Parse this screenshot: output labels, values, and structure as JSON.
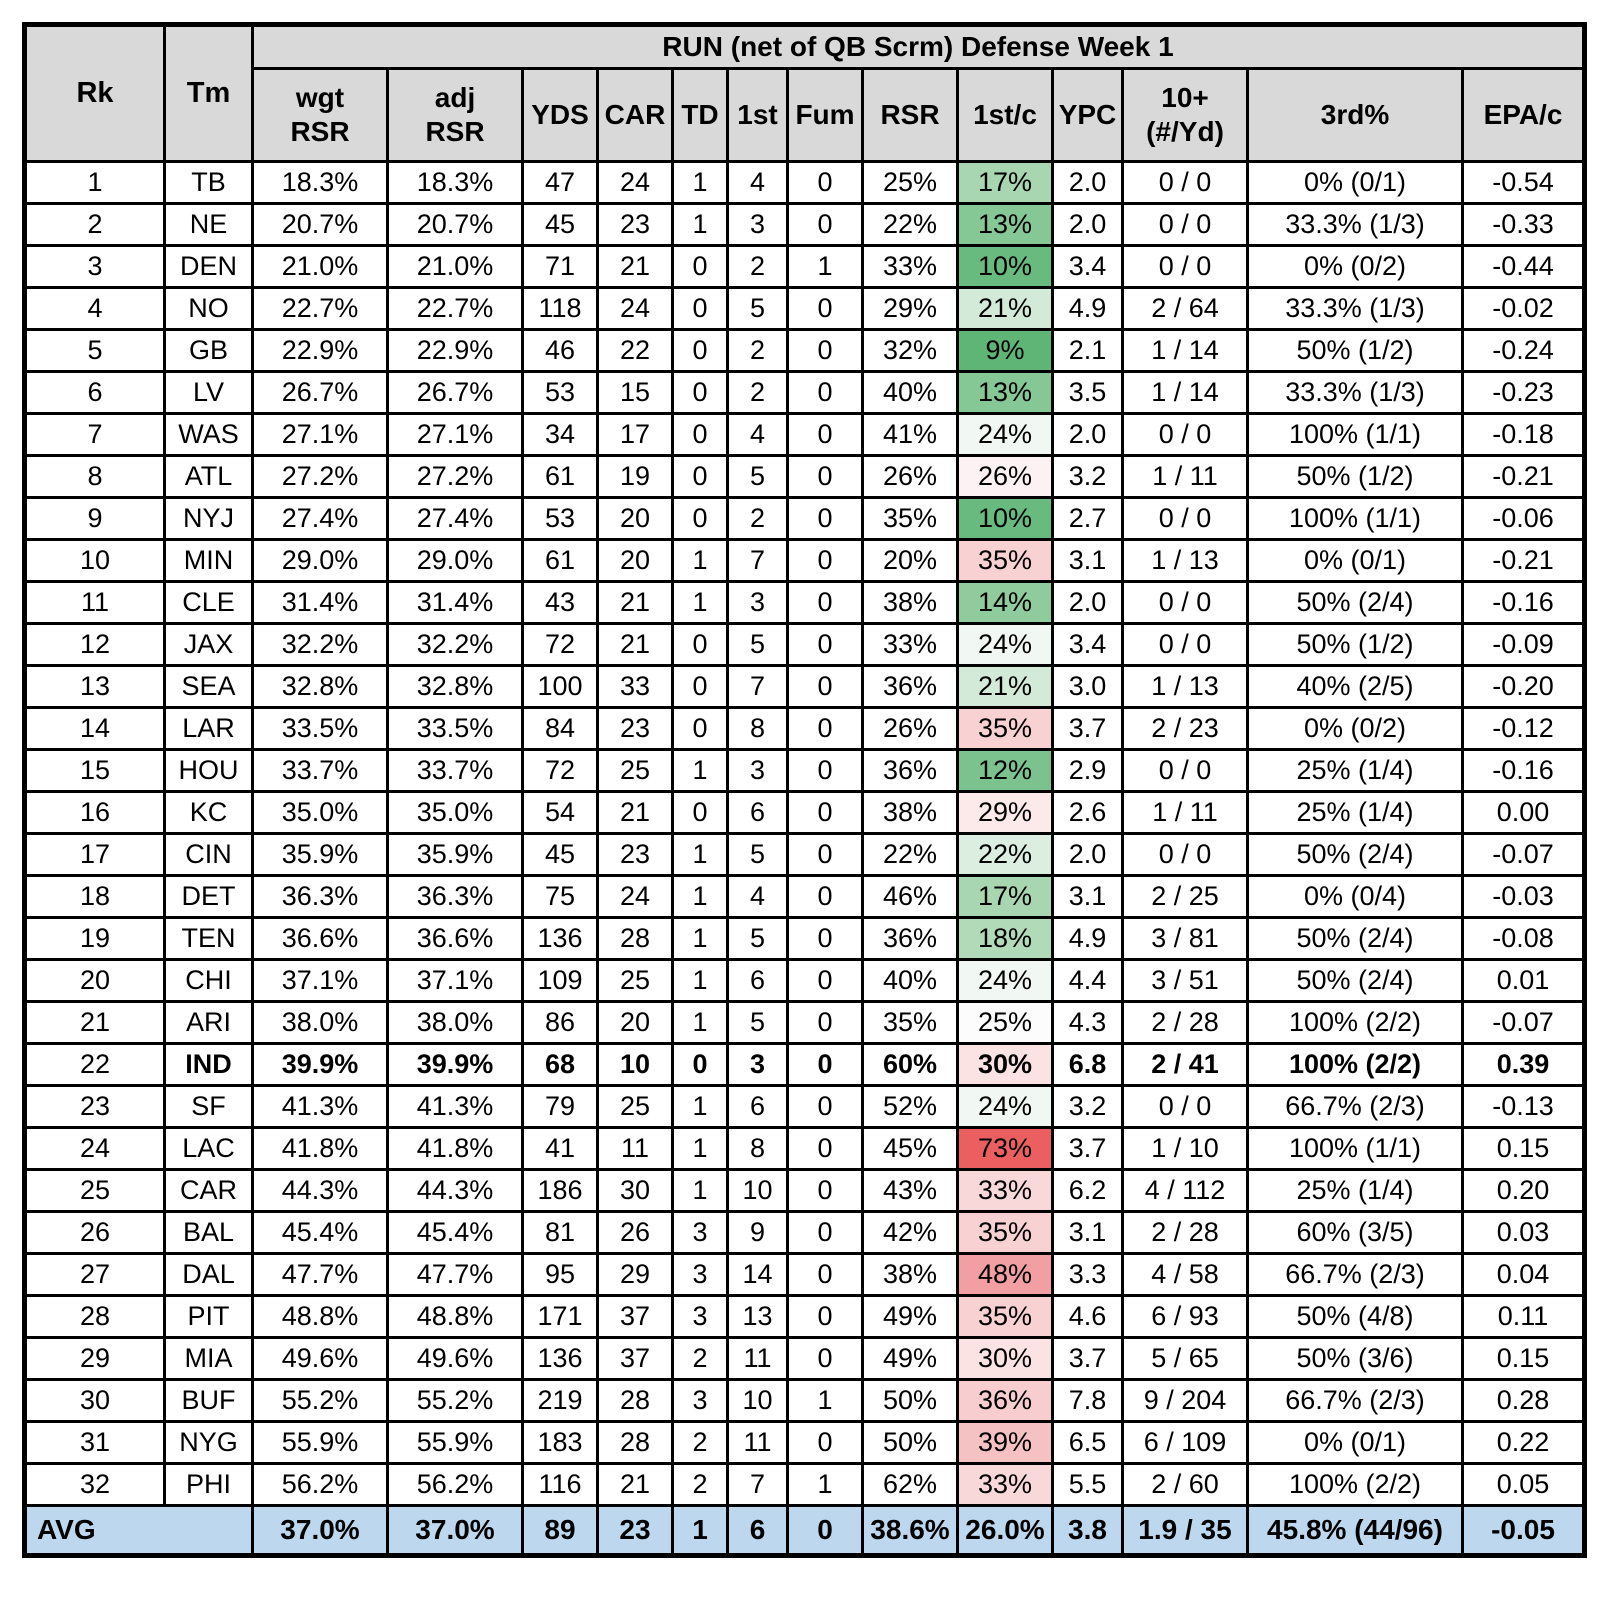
{
  "chart_data": {
    "type": "table",
    "title": "RUN (net of QB Scrm) Defense Week 1",
    "fixed_columns": [
      {
        "label": "Rk"
      },
      {
        "label": "Tm"
      }
    ],
    "stat_columns": [
      {
        "key": "wgt",
        "label": "wgt",
        "label2": "RSR"
      },
      {
        "key": "adj",
        "label": "adj",
        "label2": "RSR"
      },
      {
        "key": "yds",
        "label": "YDS",
        "label2": ""
      },
      {
        "key": "car",
        "label": "CAR",
        "label2": ""
      },
      {
        "key": "td",
        "label": "TD",
        "label2": ""
      },
      {
        "key": "first",
        "label": "1st",
        "label2": ""
      },
      {
        "key": "fum",
        "label": "Fum",
        "label2": ""
      },
      {
        "key": "rsr",
        "label": "RSR",
        "label2": ""
      },
      {
        "key": "firstc",
        "label": "1st/c",
        "label2": ""
      },
      {
        "key": "ypc",
        "label": "YPC",
        "label2": ""
      },
      {
        "key": "tenplus",
        "label": "10+",
        "label2": "(#/Yd)"
      },
      {
        "key": "third",
        "label": "3rd%",
        "label2": ""
      },
      {
        "key": "epa",
        "label": "EPA/c",
        "label2": ""
      }
    ],
    "rows": [
      {
        "rk": "1",
        "tm": "TB",
        "wgt": "18.3%",
        "adj": "18.3%",
        "yds": "47",
        "car": "24",
        "td": "1",
        "first": "4",
        "fum": "0",
        "rsr": "25%",
        "firstc": "17%",
        "firstc_bg": "#a8d6b0",
        "ypc": "2.0",
        "tenplus": "0 / 0",
        "third": "0% (0/1)",
        "epa": "-0.54",
        "bold": false
      },
      {
        "rk": "2",
        "tm": "NE",
        "wgt": "20.7%",
        "adj": "20.7%",
        "yds": "45",
        "car": "23",
        "td": "1",
        "first": "3",
        "fum": "0",
        "rsr": "22%",
        "firstc": "13%",
        "firstc_bg": "#86c796",
        "ypc": "2.0",
        "tenplus": "0 / 0",
        "third": "33.3% (1/3)",
        "epa": "-0.33",
        "bold": false
      },
      {
        "rk": "3",
        "tm": "DEN",
        "wgt": "21.0%",
        "adj": "21.0%",
        "yds": "71",
        "car": "21",
        "td": "0",
        "first": "2",
        "fum": "1",
        "rsr": "33%",
        "firstc": "10%",
        "firstc_bg": "#68ba7f",
        "ypc": "3.4",
        "tenplus": "0 / 0",
        "third": "0% (0/2)",
        "epa": "-0.44",
        "bold": false
      },
      {
        "rk": "4",
        "tm": "NO",
        "wgt": "22.7%",
        "adj": "22.7%",
        "yds": "118",
        "car": "24",
        "td": "0",
        "first": "5",
        "fum": "0",
        "rsr": "29%",
        "firstc": "21%",
        "firstc_bg": "#d3ead8",
        "ypc": "4.9",
        "tenplus": "2 / 64",
        "third": "33.3% (1/3)",
        "epa": "-0.02",
        "bold": false
      },
      {
        "rk": "5",
        "tm": "GB",
        "wgt": "22.9%",
        "adj": "22.9%",
        "yds": "46",
        "car": "22",
        "td": "0",
        "first": "2",
        "fum": "0",
        "rsr": "32%",
        "firstc": "9%",
        "firstc_bg": "#5eb576",
        "ypc": "2.1",
        "tenplus": "1 / 14",
        "third": "50% (1/2)",
        "epa": "-0.24",
        "bold": false
      },
      {
        "rk": "6",
        "tm": "LV",
        "wgt": "26.7%",
        "adj": "26.7%",
        "yds": "53",
        "car": "15",
        "td": "0",
        "first": "2",
        "fum": "0",
        "rsr": "40%",
        "firstc": "13%",
        "firstc_bg": "#86c796",
        "ypc": "3.5",
        "tenplus": "1 / 14",
        "third": "33.3% (1/3)",
        "epa": "-0.23",
        "bold": false
      },
      {
        "rk": "7",
        "tm": "WAS",
        "wgt": "27.1%",
        "adj": "27.1%",
        "yds": "34",
        "car": "17",
        "td": "0",
        "first": "4",
        "fum": "0",
        "rsr": "41%",
        "firstc": "24%",
        "firstc_bg": "#f1f7f3",
        "ypc": "2.0",
        "tenplus": "0 / 0",
        "third": "100% (1/1)",
        "epa": "-0.18",
        "bold": false
      },
      {
        "rk": "8",
        "tm": "ATL",
        "wgt": "27.2%",
        "adj": "27.2%",
        "yds": "61",
        "car": "19",
        "td": "0",
        "first": "5",
        "fum": "0",
        "rsr": "26%",
        "firstc": "26%",
        "firstc_bg": "#fdf2f3",
        "ypc": "3.2",
        "tenplus": "1 / 11",
        "third": "50% (1/2)",
        "epa": "-0.21",
        "bold": false
      },
      {
        "rk": "9",
        "tm": "NYJ",
        "wgt": "27.4%",
        "adj": "27.4%",
        "yds": "53",
        "car": "20",
        "td": "0",
        "first": "2",
        "fum": "0",
        "rsr": "35%",
        "firstc": "10%",
        "firstc_bg": "#68ba7f",
        "ypc": "2.7",
        "tenplus": "0 / 0",
        "third": "100% (1/1)",
        "epa": "-0.06",
        "bold": false
      },
      {
        "rk": "10",
        "tm": "MIN",
        "wgt": "29.0%",
        "adj": "29.0%",
        "yds": "61",
        "car": "20",
        "td": "1",
        "first": "7",
        "fum": "0",
        "rsr": "20%",
        "firstc": "35%",
        "firstc_bg": "#f8d1d3",
        "ypc": "3.1",
        "tenplus": "1 / 13",
        "third": "0% (0/1)",
        "epa": "-0.21",
        "bold": false
      },
      {
        "rk": "11",
        "tm": "CLE",
        "wgt": "31.4%",
        "adj": "31.4%",
        "yds": "43",
        "car": "21",
        "td": "1",
        "first": "3",
        "fum": "0",
        "rsr": "38%",
        "firstc": "14%",
        "firstc_bg": "#90cb9e",
        "ypc": "2.0",
        "tenplus": "0 / 0",
        "third": "50% (2/4)",
        "epa": "-0.16",
        "bold": false
      },
      {
        "rk": "12",
        "tm": "JAX",
        "wgt": "32.2%",
        "adj": "32.2%",
        "yds": "72",
        "car": "21",
        "td": "0",
        "first": "5",
        "fum": "0",
        "rsr": "33%",
        "firstc": "24%",
        "firstc_bg": "#f1f7f3",
        "ypc": "3.4",
        "tenplus": "0 / 0",
        "third": "50% (1/2)",
        "epa": "-0.09",
        "bold": false
      },
      {
        "rk": "13",
        "tm": "SEA",
        "wgt": "32.8%",
        "adj": "32.8%",
        "yds": "100",
        "car": "33",
        "td": "0",
        "first": "7",
        "fum": "0",
        "rsr": "36%",
        "firstc": "21%",
        "firstc_bg": "#d3ead8",
        "ypc": "3.0",
        "tenplus": "1 / 13",
        "third": "40% (2/5)",
        "epa": "-0.20",
        "bold": false
      },
      {
        "rk": "14",
        "tm": "LAR",
        "wgt": "33.5%",
        "adj": "33.5%",
        "yds": "84",
        "car": "23",
        "td": "0",
        "first": "8",
        "fum": "0",
        "rsr": "26%",
        "firstc": "35%",
        "firstc_bg": "#f8d1d3",
        "ypc": "3.7",
        "tenplus": "2 / 23",
        "third": "0% (0/2)",
        "epa": "-0.12",
        "bold": false
      },
      {
        "rk": "15",
        "tm": "HOU",
        "wgt": "33.7%",
        "adj": "33.7%",
        "yds": "72",
        "car": "25",
        "td": "1",
        "first": "3",
        "fum": "0",
        "rsr": "36%",
        "firstc": "12%",
        "firstc_bg": "#7cc28e",
        "ypc": "2.9",
        "tenplus": "0 / 0",
        "third": "25% (1/4)",
        "epa": "-0.16",
        "bold": false
      },
      {
        "rk": "16",
        "tm": "KC",
        "wgt": "35.0%",
        "adj": "35.0%",
        "yds": "54",
        "car": "21",
        "td": "0",
        "first": "6",
        "fum": "0",
        "rsr": "38%",
        "firstc": "29%",
        "firstc_bg": "#fce9ea",
        "ypc": "2.6",
        "tenplus": "1 / 11",
        "third": "25% (1/4)",
        "epa": "0.00",
        "bold": false
      },
      {
        "rk": "17",
        "tm": "CIN",
        "wgt": "35.9%",
        "adj": "35.9%",
        "yds": "45",
        "car": "23",
        "td": "1",
        "first": "5",
        "fum": "0",
        "rsr": "22%",
        "firstc": "22%",
        "firstc_bg": "#dceee0",
        "ypc": "2.0",
        "tenplus": "0 / 0",
        "third": "50% (2/4)",
        "epa": "-0.07",
        "bold": false
      },
      {
        "rk": "18",
        "tm": "DET",
        "wgt": "36.3%",
        "adj": "36.3%",
        "yds": "75",
        "car": "24",
        "td": "1",
        "first": "4",
        "fum": "0",
        "rsr": "46%",
        "firstc": "17%",
        "firstc_bg": "#a8d6b0",
        "ypc": "3.1",
        "tenplus": "2 / 25",
        "third": "0% (0/4)",
        "epa": "-0.03",
        "bold": false
      },
      {
        "rk": "19",
        "tm": "TEN",
        "wgt": "36.6%",
        "adj": "36.6%",
        "yds": "136",
        "car": "28",
        "td": "1",
        "first": "5",
        "fum": "0",
        "rsr": "36%",
        "firstc": "18%",
        "firstc_bg": "#b0dab8",
        "ypc": "4.9",
        "tenplus": "3 / 81",
        "third": "50% (2/4)",
        "epa": "-0.08",
        "bold": false
      },
      {
        "rk": "20",
        "tm": "CHI",
        "wgt": "37.1%",
        "adj": "37.1%",
        "yds": "109",
        "car": "25",
        "td": "1",
        "first": "6",
        "fum": "0",
        "rsr": "40%",
        "firstc": "24%",
        "firstc_bg": "#f1f7f3",
        "ypc": "4.4",
        "tenplus": "3 / 51",
        "third": "50% (2/4)",
        "epa": "0.01",
        "bold": false
      },
      {
        "rk": "21",
        "tm": "ARI",
        "wgt": "38.0%",
        "adj": "38.0%",
        "yds": "86",
        "car": "20",
        "td": "1",
        "first": "5",
        "fum": "0",
        "rsr": "35%",
        "firstc": "25%",
        "firstc_bg": "#fbfcfb",
        "ypc": "4.3",
        "tenplus": "2 / 28",
        "third": "100% (2/2)",
        "epa": "-0.07",
        "bold": false
      },
      {
        "rk": "22",
        "tm": "IND",
        "wgt": "39.9%",
        "adj": "39.9%",
        "yds": "68",
        "car": "10",
        "td": "0",
        "first": "3",
        "fum": "0",
        "rsr": "60%",
        "firstc": "30%",
        "firstc_bg": "#fbe3e4",
        "ypc": "6.8",
        "tenplus": "2 / 41",
        "third": "100% (2/2)",
        "epa": "0.39",
        "bold": true
      },
      {
        "rk": "23",
        "tm": "SF",
        "wgt": "41.3%",
        "adj": "41.3%",
        "yds": "79",
        "car": "25",
        "td": "1",
        "first": "6",
        "fum": "0",
        "rsr": "52%",
        "firstc": "24%",
        "firstc_bg": "#f1f7f3",
        "ypc": "3.2",
        "tenplus": "0 / 0",
        "third": "66.7% (2/3)",
        "epa": "-0.13",
        "bold": false
      },
      {
        "rk": "24",
        "tm": "LAC",
        "wgt": "41.8%",
        "adj": "41.8%",
        "yds": "41",
        "car": "11",
        "td": "1",
        "first": "8",
        "fum": "0",
        "rsr": "45%",
        "firstc": "73%",
        "firstc_bg": "#ec5f61",
        "ypc": "3.7",
        "tenplus": "1 / 10",
        "third": "100% (1/1)",
        "epa": "0.15",
        "bold": false
      },
      {
        "rk": "25",
        "tm": "CAR",
        "wgt": "44.3%",
        "adj": "44.3%",
        "yds": "186",
        "car": "30",
        "td": "1",
        "first": "10",
        "fum": "0",
        "rsr": "43%",
        "firstc": "33%",
        "firstc_bg": "#f9d8da",
        "ypc": "6.2",
        "tenplus": "4 / 112",
        "third": "25% (1/4)",
        "epa": "0.20",
        "bold": false
      },
      {
        "rk": "26",
        "tm": "BAL",
        "wgt": "45.4%",
        "adj": "45.4%",
        "yds": "81",
        "car": "26",
        "td": "3",
        "first": "9",
        "fum": "0",
        "rsr": "42%",
        "firstc": "35%",
        "firstc_bg": "#f8d1d3",
        "ypc": "3.1",
        "tenplus": "2 / 28",
        "third": "60% (3/5)",
        "epa": "0.03",
        "bold": false
      },
      {
        "rk": "27",
        "tm": "DAL",
        "wgt": "47.7%",
        "adj": "47.7%",
        "yds": "95",
        "car": "29",
        "td": "3",
        "first": "14",
        "fum": "0",
        "rsr": "38%",
        "firstc": "48%",
        "firstc_bg": "#f19fa2",
        "ypc": "3.3",
        "tenplus": "4 / 58",
        "third": "66.7% (2/3)",
        "epa": "0.04",
        "bold": false
      },
      {
        "rk": "28",
        "tm": "PIT",
        "wgt": "48.8%",
        "adj": "48.8%",
        "yds": "171",
        "car": "37",
        "td": "3",
        "first": "13",
        "fum": "0",
        "rsr": "49%",
        "firstc": "35%",
        "firstc_bg": "#f8d1d3",
        "ypc": "4.6",
        "tenplus": "6 / 93",
        "third": "50% (4/8)",
        "epa": "0.11",
        "bold": false
      },
      {
        "rk": "29",
        "tm": "MIA",
        "wgt": "49.6%",
        "adj": "49.6%",
        "yds": "136",
        "car": "37",
        "td": "2",
        "first": "11",
        "fum": "0",
        "rsr": "49%",
        "firstc": "30%",
        "firstc_bg": "#fbe3e4",
        "ypc": "3.7",
        "tenplus": "5 / 65",
        "third": "50% (3/6)",
        "epa": "0.15",
        "bold": false
      },
      {
        "rk": "30",
        "tm": "BUF",
        "wgt": "55.2%",
        "adj": "55.2%",
        "yds": "219",
        "car": "28",
        "td": "3",
        "first": "10",
        "fum": "1",
        "rsr": "50%",
        "firstc": "36%",
        "firstc_bg": "#f7cdcf",
        "ypc": "7.8",
        "tenplus": "9 / 204",
        "third": "66.7% (2/3)",
        "epa": "0.28",
        "bold": false
      },
      {
        "rk": "31",
        "tm": "NYG",
        "wgt": "55.9%",
        "adj": "55.9%",
        "yds": "183",
        "car": "28",
        "td": "2",
        "first": "11",
        "fum": "0",
        "rsr": "50%",
        "firstc": "39%",
        "firstc_bg": "#f5c1c3",
        "ypc": "6.5",
        "tenplus": "6 / 109",
        "third": "0% (0/1)",
        "epa": "0.22",
        "bold": false
      },
      {
        "rk": "32",
        "tm": "PHI",
        "wgt": "56.2%",
        "adj": "56.2%",
        "yds": "116",
        "car": "21",
        "td": "2",
        "first": "7",
        "fum": "1",
        "rsr": "62%",
        "firstc": "33%",
        "firstc_bg": "#f9d8da",
        "ypc": "5.5",
        "tenplus": "2 / 60",
        "third": "100% (2/2)",
        "epa": "0.05",
        "bold": false
      }
    ],
    "avg_row": {
      "label": "AVG",
      "wgt": "37.0%",
      "adj": "37.0%",
      "yds": "89",
      "car": "23",
      "td": "1",
      "first": "6",
      "fum": "0",
      "rsr": "38.6%",
      "firstc": "26.0%",
      "ypc": "3.8",
      "tenplus": "1.9 / 35",
      "third": "45.8% (44/96)",
      "epa": "-0.05"
    },
    "colors": {
      "header_bg": "#d9d9d9",
      "avg_row_bg": "#bdd7ee",
      "border": "#000000",
      "scale_low_green": "#5eb576",
      "scale_mid_white": "#ffffff",
      "scale_high_red": "#ec5f61"
    },
    "layout_hints": {
      "color_scaled_column": "1st/c",
      "highlighted_bold_team": "IND"
    }
  }
}
